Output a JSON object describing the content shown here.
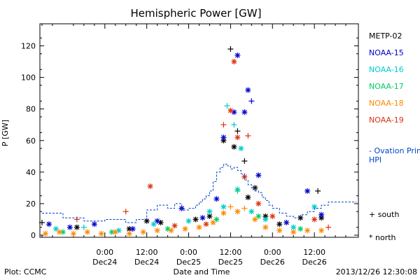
{
  "chart_data": {
    "type": "scatter",
    "title": "Hemispheric Power [GW]",
    "xlabel": "Date and Time",
    "ylabel": "P [GW]",
    "ylim": [
      0,
      130
    ],
    "xlim": [
      0,
      90
    ],
    "x_unit": "hours after 2013-12-23 06:00 UT",
    "grid": false,
    "y_ticks": [
      0,
      20,
      40,
      60,
      80,
      100,
      120
    ],
    "x_ticks": [
      {
        "x": 18,
        "time": "0:00",
        "date": "Dec24"
      },
      {
        "x": 30,
        "time": "12:00",
        "date": "Dec24"
      },
      {
        "x": 42,
        "time": "0:00",
        "date": "Dec25"
      },
      {
        "x": 54,
        "time": "12:00",
        "date": "Dec25"
      },
      {
        "x": 66,
        "time": "0:00",
        "date": "Dec26"
      },
      {
        "x": 78,
        "time": "12:00",
        "date": "Dec26"
      }
    ],
    "legend_position": "right",
    "legend_symbols": {
      "south": "+ south",
      "north": "* north"
    },
    "series": [
      {
        "name": "METP-02",
        "color": "#000000",
        "points": [
          {
            "x": 0,
            "y": 8,
            "m": "south"
          },
          {
            "x": 10,
            "y": 5,
            "m": "north"
          },
          {
            "x": 25,
            "y": 4,
            "m": "north"
          },
          {
            "x": 30,
            "y": 9,
            "m": "north"
          },
          {
            "x": 34,
            "y": 8,
            "m": "north"
          },
          {
            "x": 40,
            "y": 17,
            "m": "south"
          },
          {
            "x": 44,
            "y": 10,
            "m": "north"
          },
          {
            "x": 48,
            "y": 12,
            "m": "north"
          },
          {
            "x": 52,
            "y": 60,
            "m": "north"
          },
          {
            "x": 54,
            "y": 118,
            "m": "south"
          },
          {
            "x": 55,
            "y": 56,
            "m": "north"
          },
          {
            "x": 56,
            "y": 66,
            "m": "south"
          },
          {
            "x": 58,
            "y": 47,
            "m": "south"
          },
          {
            "x": 59,
            "y": 24,
            "m": "north"
          },
          {
            "x": 61,
            "y": 30,
            "m": "north"
          },
          {
            "x": 64,
            "y": 12,
            "m": "north"
          },
          {
            "x": 68,
            "y": 7,
            "m": "north"
          },
          {
            "x": 74,
            "y": 11,
            "m": "north"
          },
          {
            "x": 79,
            "y": 28,
            "m": "south"
          },
          {
            "x": 80,
            "y": 11,
            "m": "north"
          }
        ]
      },
      {
        "name": "NOAA-15",
        "color": "#0000cc",
        "points": [
          {
            "x": 2,
            "y": 7,
            "m": "north"
          },
          {
            "x": 8,
            "y": 5,
            "m": "north"
          },
          {
            "x": 15,
            "y": 7,
            "m": "north"
          },
          {
            "x": 26,
            "y": 4,
            "m": "north"
          },
          {
            "x": 33,
            "y": 9,
            "m": "north"
          },
          {
            "x": 40,
            "y": 17,
            "m": "north"
          },
          {
            "x": 46,
            "y": 11,
            "m": "north"
          },
          {
            "x": 50,
            "y": 23,
            "m": "north"
          },
          {
            "x": 52,
            "y": 62,
            "m": "north"
          },
          {
            "x": 55,
            "y": 78,
            "m": "north"
          },
          {
            "x": 56,
            "y": 114,
            "m": "north"
          },
          {
            "x": 58,
            "y": 78,
            "m": "north"
          },
          {
            "x": 59,
            "y": 92,
            "m": "north"
          },
          {
            "x": 60,
            "y": 85,
            "m": "south"
          },
          {
            "x": 62,
            "y": 38,
            "m": "north"
          },
          {
            "x": 70,
            "y": 8,
            "m": "north"
          },
          {
            "x": 76,
            "y": 28,
            "m": "north"
          },
          {
            "x": 80,
            "y": 13,
            "m": "north"
          }
        ]
      },
      {
        "name": "NOAA-16",
        "color": "#00cccc",
        "points": [
          {
            "x": 4,
            "y": 4,
            "m": "north"
          },
          {
            "x": 12,
            "y": 5,
            "m": "south"
          },
          {
            "x": 22,
            "y": 3,
            "m": "north"
          },
          {
            "x": 32,
            "y": 7,
            "m": "north"
          },
          {
            "x": 42,
            "y": 9,
            "m": "north"
          },
          {
            "x": 48,
            "y": 15,
            "m": "north"
          },
          {
            "x": 52,
            "y": 18,
            "m": "north"
          },
          {
            "x": 53,
            "y": 82,
            "m": "south"
          },
          {
            "x": 55,
            "y": 70,
            "m": "south"
          },
          {
            "x": 56,
            "y": 29,
            "m": "north"
          },
          {
            "x": 57,
            "y": 55,
            "m": "north"
          },
          {
            "x": 60,
            "y": 15,
            "m": "north"
          },
          {
            "x": 64,
            "y": 10,
            "m": "north"
          },
          {
            "x": 72,
            "y": 5,
            "m": "north"
          },
          {
            "x": 78,
            "y": 18,
            "m": "north"
          }
        ]
      },
      {
        "name": "NOAA-17",
        "color": "#00cc66",
        "points": [
          {
            "x": 6,
            "y": 2,
            "m": "north"
          },
          {
            "x": 20,
            "y": 2,
            "m": "north"
          },
          {
            "x": 36,
            "y": 4,
            "m": "north"
          },
          {
            "x": 50,
            "y": 10,
            "m": "north"
          },
          {
            "x": 56,
            "y": 28,
            "m": "south"
          },
          {
            "x": 62,
            "y": 12,
            "m": "north"
          },
          {
            "x": 74,
            "y": 4,
            "m": "north"
          }
        ]
      },
      {
        "name": "NOAA-18",
        "color": "#ff8800",
        "points": [
          {
            "x": 1,
            "y": 1,
            "m": "north"
          },
          {
            "x": 5,
            "y": 2,
            "m": "north"
          },
          {
            "x": 9,
            "y": 1,
            "m": "north"
          },
          {
            "x": 13,
            "y": 2,
            "m": "north"
          },
          {
            "x": 17,
            "y": 1,
            "m": "north"
          },
          {
            "x": 21,
            "y": 2,
            "m": "north"
          },
          {
            "x": 25,
            "y": 1,
            "m": "north"
          },
          {
            "x": 29,
            "y": 2,
            "m": "north"
          },
          {
            "x": 33,
            "y": 3,
            "m": "north"
          },
          {
            "x": 37,
            "y": 3,
            "m": "north"
          },
          {
            "x": 41,
            "y": 4,
            "m": "north"
          },
          {
            "x": 45,
            "y": 5,
            "m": "north"
          },
          {
            "x": 49,
            "y": 8,
            "m": "north"
          },
          {
            "x": 52,
            "y": 14,
            "m": "north"
          },
          {
            "x": 54,
            "y": 18,
            "m": "south"
          },
          {
            "x": 56,
            "y": 15,
            "m": "north"
          },
          {
            "x": 58,
            "y": 17,
            "m": "south"
          },
          {
            "x": 61,
            "y": 10,
            "m": "north"
          },
          {
            "x": 64,
            "y": 5,
            "m": "north"
          },
          {
            "x": 68,
            "y": 3,
            "m": "north"
          },
          {
            "x": 72,
            "y": 2,
            "m": "north"
          },
          {
            "x": 76,
            "y": 3,
            "m": "north"
          },
          {
            "x": 80,
            "y": 3,
            "m": "north"
          }
        ]
      },
      {
        "name": "NOAA-19",
        "color": "#dd3311",
        "points": [
          {
            "x": 10,
            "y": 10,
            "m": "south"
          },
          {
            "x": 24,
            "y": 15,
            "m": "south"
          },
          {
            "x": 31,
            "y": 31,
            "m": "north"
          },
          {
            "x": 38,
            "y": 6,
            "m": "north"
          },
          {
            "x": 47,
            "y": 7,
            "m": "north"
          },
          {
            "x": 52,
            "y": 70,
            "m": "south"
          },
          {
            "x": 54,
            "y": 79,
            "m": "north"
          },
          {
            "x": 55,
            "y": 110,
            "m": "north"
          },
          {
            "x": 56,
            "y": 62,
            "m": "north"
          },
          {
            "x": 58,
            "y": 37,
            "m": "north"
          },
          {
            "x": 59,
            "y": 63,
            "m": "south"
          },
          {
            "x": 62,
            "y": 20,
            "m": "north"
          },
          {
            "x": 66,
            "y": 12,
            "m": "north"
          },
          {
            "x": 78,
            "y": 10,
            "m": "north"
          },
          {
            "x": 82,
            "y": 5,
            "m": "south"
          }
        ]
      },
      {
        "name": "Ovation Prime HPI",
        "legend": "- Ovation Prime HPI",
        "color": "#0044cc",
        "style": "dashed-step",
        "x": [
          0,
          6,
          12,
          18,
          24,
          27,
          30,
          33,
          36,
          38,
          40,
          42,
          44,
          45,
          46,
          47,
          48,
          49,
          50,
          51,
          52,
          53,
          54,
          55,
          56,
          57,
          58,
          59,
          60,
          61,
          62,
          63,
          64,
          65,
          66,
          68,
          70,
          72,
          74,
          76,
          78,
          80,
          82
        ],
        "y": [
          14,
          11,
          9,
          10,
          8,
          10,
          16,
          19,
          17,
          20,
          16,
          17,
          19,
          21,
          23,
          25,
          28,
          34,
          40,
          43,
          45,
          44,
          42,
          43,
          41,
          39,
          35,
          32,
          30,
          28,
          27,
          24,
          22,
          19,
          17,
          14,
          12,
          11,
          13,
          15,
          17,
          19,
          21
        ]
      }
    ]
  },
  "footer": {
    "source": "Plot: CCMC",
    "timestamp": "2013/12/26 12:30:08"
  }
}
